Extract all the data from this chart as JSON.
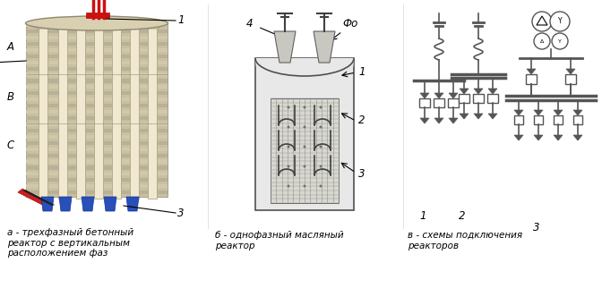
{
  "background_color": "#ffffff",
  "fig_width": 6.72,
  "fig_height": 3.32,
  "dpi": 100,
  "caption_a": "а - трехфазный бетонный\nреактор с вертикальным\nрасположением фаз",
  "caption_b": "б - однофазный масляный\nреактор",
  "caption_v": "в - схемы подключения\nреакторов",
  "text_color": "#000000",
  "caption_fontsize": 7.5,
  "label_fontsize": 8.5
}
